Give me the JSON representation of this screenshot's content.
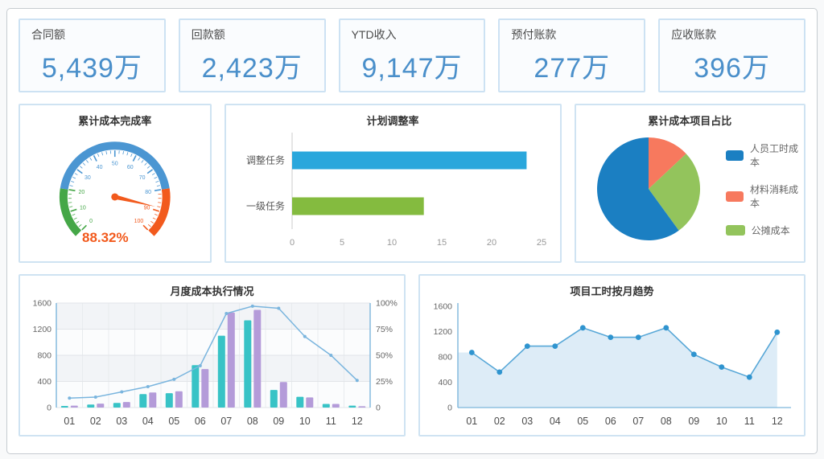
{
  "page": {
    "outer_bg": "#f8f9fa",
    "container_border": "#c6cbd0",
    "panel_border": "#cfe3f2",
    "accent_blue": "#4a8fca"
  },
  "kpi_cards": [
    {
      "label": "合同额",
      "value": "5,439万"
    },
    {
      "label": "回款额",
      "value": "2,423万"
    },
    {
      "label": "YTD收入",
      "value": "9,147万"
    },
    {
      "label": "预付账款",
      "value": "277万"
    },
    {
      "label": "应收账款",
      "value": "396万"
    }
  ],
  "chart_data": [
    {
      "id": "gauge",
      "type": "gauge",
      "title": "累计成本完成率",
      "value": 88.32,
      "value_label": "88.32%",
      "min": 0,
      "max": 100,
      "tick_step": 10,
      "zones": [
        {
          "from": 0,
          "to": 20,
          "color": "#45a747"
        },
        {
          "from": 20,
          "to": 80,
          "color": "#4b96d2"
        },
        {
          "from": 80,
          "to": 100,
          "color": "#f25a1d"
        }
      ],
      "needle_color": "#f25a1d",
      "value_color": "#f25a1d"
    },
    {
      "id": "plan_adjust",
      "type": "bar",
      "orientation": "horizontal",
      "title": "计划调整率",
      "categories": [
        "调整任务",
        "一级任务"
      ],
      "values": [
        23.5,
        13.2
      ],
      "colors": [
        "#2aa7dc",
        "#84bb3f"
      ],
      "xlim": [
        0,
        25
      ],
      "xticks": [
        0,
        5,
        10,
        15,
        20,
        25
      ]
    },
    {
      "id": "cost_share",
      "type": "pie",
      "title": "累计成本项目占比",
      "slices": [
        {
          "label": "人员工时成本",
          "value": 60,
          "color": "#1b7fc2"
        },
        {
          "label": "材料消耗成本",
          "value": 13,
          "color": "#f7795e"
        },
        {
          "label": "公摊成本",
          "value": 27,
          "color": "#93c45c"
        }
      ],
      "draw_order": [
        1,
        2,
        0
      ],
      "legend_position": "right"
    },
    {
      "id": "monthly_cost",
      "type": "bar+line",
      "title": "月度成本执行情况",
      "categories": [
        "01",
        "02",
        "03",
        "04",
        "05",
        "06",
        "07",
        "08",
        "09",
        "10",
        "11",
        "12"
      ],
      "series": [
        {
          "type": "bar",
          "color": "#38c3c6",
          "values": [
            25,
            45,
            70,
            205,
            220,
            650,
            1100,
            1335,
            270,
            165,
            55,
            30
          ]
        },
        {
          "type": "bar",
          "color": "#b49bd9",
          "values": [
            30,
            60,
            85,
            230,
            250,
            590,
            1455,
            1495,
            390,
            155,
            55,
            20
          ]
        },
        {
          "type": "line",
          "color": "#7ab5de",
          "axis": "right",
          "values": [
            9,
            10,
            15,
            20,
            27,
            40,
            90,
            97,
            95,
            68,
            50,
            26
          ]
        }
      ],
      "ylim_left": [
        0,
        1600
      ],
      "yticks_left": [
        0,
        400,
        800,
        1200,
        1600
      ],
      "ylim_right": [
        0,
        100
      ],
      "yticks_right_labels": [
        "0",
        "25%",
        "50%",
        "75%",
        "100%"
      ],
      "grid": true
    },
    {
      "id": "monthly_hours",
      "type": "area",
      "title": "项目工时按月趋势",
      "categories": [
        "01",
        "02",
        "03",
        "04",
        "05",
        "06",
        "07",
        "08",
        "09",
        "10",
        "11",
        "12"
      ],
      "values": [
        870,
        560,
        970,
        970,
        1260,
        1110,
        1110,
        1260,
        840,
        640,
        480,
        1190
      ],
      "color": "#57a7d7",
      "marker_color": "#2f94cf",
      "fill": "#d9eaf6",
      "ylim": [
        0,
        1600
      ],
      "yticks": [
        0,
        400,
        800,
        1200,
        1600
      ],
      "grid": false
    }
  ]
}
